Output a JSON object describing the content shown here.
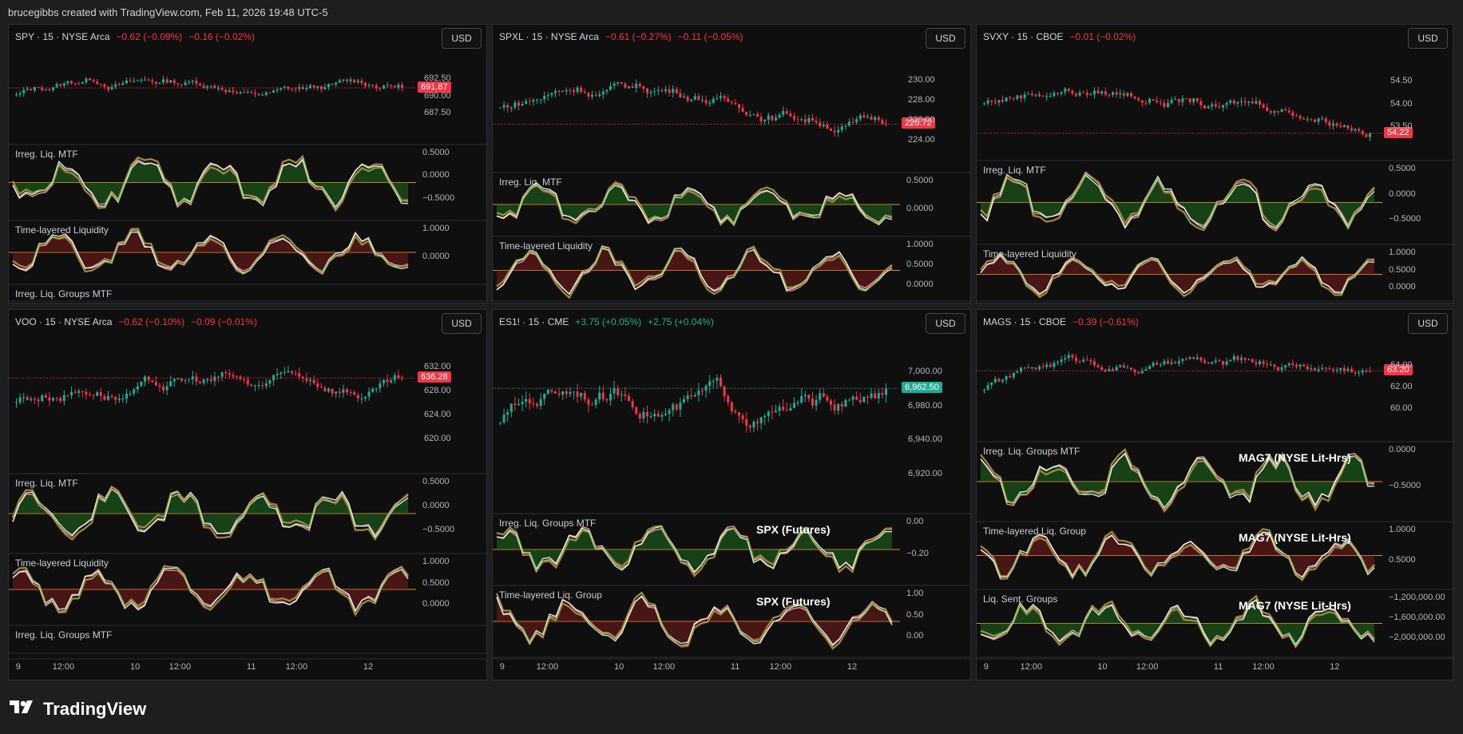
{
  "header": {
    "caption": "brucegibbs created with TradingView.com, Feb 11, 2026 19:48 UTC-5"
  },
  "brand": {
    "name": "TradingView",
    "icon": "tradingview-logo-icon"
  },
  "colors": {
    "up": "#22ab94",
    "down": "#f23645",
    "bg": "#0f0f0f",
    "green_fill": "#1f6b1f",
    "red_fill": "#7a1e1e"
  },
  "panels": [
    {
      "symbol": "SPY · 15 · NYSE Arca",
      "chg1": "−0.62 (−0.09%)",
      "chg1_dir": "down",
      "chg2": "−0.16 (−0.02%)",
      "chg2_dir": "down",
      "currency": "USD",
      "price_tag": "691.87",
      "price_tag_dir": "down",
      "price_ticks": [
        "692.50",
        "690.00",
        "687.50"
      ],
      "indicators": [
        {
          "label": "Irreg. Liq. MTF",
          "overlay": "",
          "ticks": [
            "0.5000",
            "0.0000",
            "−0.5000"
          ]
        },
        {
          "label": "Time-layered Liquidity",
          "overlay": "",
          "ticks": [
            "1.0000",
            "0.0000"
          ]
        },
        {
          "label": "Irreg. Liq. Groups MTF",
          "overlay": "",
          "ticks": []
        }
      ],
      "x_ticks": [
        "9",
        "12:00",
        "10",
        "12:00",
        "11",
        "12:00",
        "12"
      ]
    },
    {
      "symbol": "SPXL · 15 · NYSE Arca",
      "chg1": "−0.61 (−0.27%)",
      "chg1_dir": "down",
      "chg2": "−0.11 (−0.05%)",
      "chg2_dir": "down",
      "currency": "USD",
      "price_tag": "226.72",
      "price_tag_dir": "down",
      "price_ticks": [
        "230.00",
        "228.00",
        "226.00",
        "224.00"
      ],
      "indicators": [
        {
          "label": "Irreg. Liq. MTF",
          "overlay": "",
          "ticks": [
            "0.5000",
            "0.0000"
          ]
        },
        {
          "label": "Time-layered Liquidity",
          "overlay": "",
          "ticks": [
            "1.0000",
            "0.5000",
            "0.0000"
          ]
        }
      ],
      "x_ticks": [
        "9",
        "12:00",
        "10",
        "12:00",
        "11",
        "12:00",
        "12"
      ]
    },
    {
      "symbol": "SVXY · 15 · CBOE",
      "chg1": "−0.01 (−0.02%)",
      "chg1_dir": "down",
      "chg2": "",
      "chg2_dir": "down",
      "currency": "USD",
      "price_tag": "54.22",
      "price_tag_dir": "down",
      "price_ticks": [
        "54.50",
        "54.00",
        "53.50"
      ],
      "indicators": [
        {
          "label": "Irreg. Liq. MTF",
          "overlay": "",
          "ticks": [
            "0.5000",
            "0.0000",
            "−0.5000"
          ]
        },
        {
          "label": "Time-layered Liquidity",
          "overlay": "",
          "ticks": [
            "1.0000",
            "0.5000",
            "0.0000"
          ]
        }
      ],
      "x_ticks": [
        "9",
        "12:00",
        "10",
        "12:00",
        "11",
        "12:00",
        "12"
      ]
    },
    {
      "symbol": "VOO · 15 · NYSE Arca",
      "chg1": "−0.62 (−0.10%)",
      "chg1_dir": "down",
      "chg2": "−0.09 (−0.01%)",
      "chg2_dir": "down",
      "currency": "USD",
      "price_tag": "636.28",
      "price_tag_dir": "down",
      "price_ticks": [
        "632.00",
        "628.00",
        "624.00",
        "620.00"
      ],
      "indicators": [
        {
          "label": "Irreg. Liq. MTF",
          "overlay": "",
          "ticks": [
            "0.5000",
            "0.0000",
            "−0.5000"
          ]
        },
        {
          "label": "Time-layered Liquidity",
          "overlay": "",
          "ticks": [
            "1.0000",
            "0.5000",
            "0.0000"
          ]
        },
        {
          "label": "Irreg. Liq. Groups MTF",
          "overlay": "",
          "ticks": []
        }
      ],
      "x_ticks": [
        "9",
        "12:00",
        "10",
        "12:00",
        "11",
        "12:00",
        "12"
      ]
    },
    {
      "symbol": "ES1! · 15 · CME",
      "chg1": "+3.75 (+0.05%)",
      "chg1_dir": "up",
      "chg2": "+2.75 (+0.04%)",
      "chg2_dir": "up",
      "currency": "USD",
      "price_tag": "6,962.50",
      "price_tag_dir": "up",
      "price_ticks": [
        "7,000.00",
        "6,980.00",
        "6,940.00",
        "6,920.00"
      ],
      "indicators": [
        {
          "label": "Irreg. Liq. Groups MTF",
          "overlay": "SPX (Futures)",
          "ticks": [
            "0.00",
            "−0.20"
          ]
        },
        {
          "label": "Time-layered Liq. Group",
          "overlay": "SPX (Futures)",
          "ticks": [
            "1.00",
            "0.50",
            "0.00"
          ]
        }
      ],
      "x_ticks": [
        "9",
        "12:00",
        "10",
        "12:00",
        "11",
        "12:00",
        "12"
      ]
    },
    {
      "symbol": "MAGS · 15 · CBOE",
      "chg1": "−0.39 (−0.61%)",
      "chg1_dir": "down",
      "chg2": "",
      "chg2_dir": "down",
      "currency": "USD",
      "price_tag": "63.20",
      "price_tag_dir": "down",
      "price_ticks": [
        "64.00",
        "62.00",
        "60.00"
      ],
      "indicators": [
        {
          "label": "Irreg. Liq. Groups MTF",
          "overlay": "MAG7 (NYSE Lit-Hrs)",
          "ticks": [
            "0.0000",
            "−0.5000"
          ]
        },
        {
          "label": "Time-layered Liq. Group",
          "overlay": "MAG7 (NYSE Lit-Hrs)",
          "ticks": [
            "1.0000",
            "0.5000"
          ]
        },
        {
          "label": "Liq. Sent. Groups",
          "overlay": "MAG7 (NYSE Lit-Hrs)",
          "ticks": [
            "−1,200,000.00",
            "−1,600,000.00",
            "−2,000,000.00"
          ]
        }
      ],
      "x_ticks": [
        "9",
        "12:00",
        "10",
        "12:00",
        "11",
        "12:00",
        "12"
      ]
    }
  ]
}
